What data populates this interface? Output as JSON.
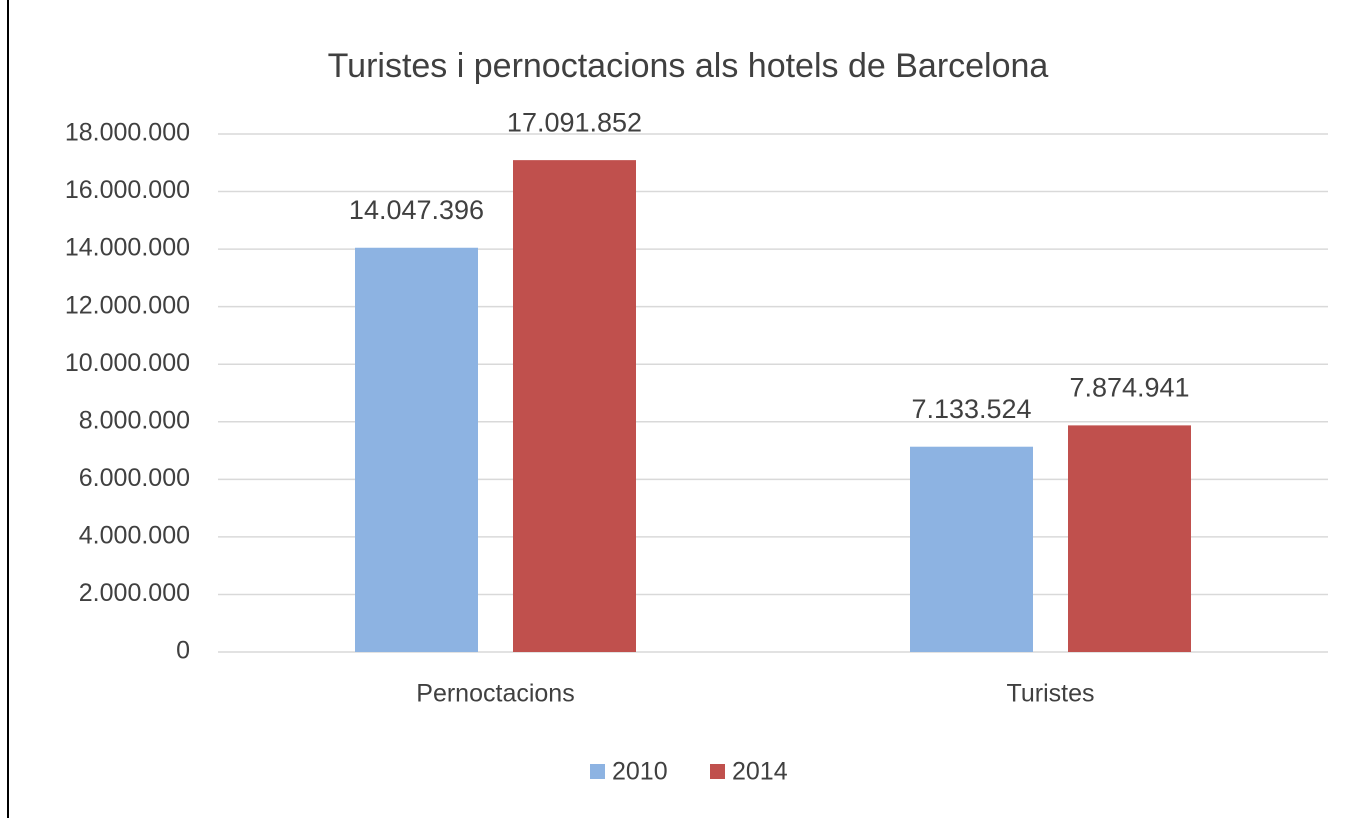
{
  "chart_data": {
    "type": "bar",
    "title": "Turistes i pernoctacions als hotels de Barcelona",
    "categories": [
      "Pernoctacions",
      "Turistes"
    ],
    "series": [
      {
        "name": "2010",
        "color": "#8db3e2",
        "values": [
          14047396,
          7133524
        ],
        "value_labels": [
          "14.047.396",
          "7.133.524"
        ]
      },
      {
        "name": "2014",
        "color": "#c0504d",
        "values": [
          17091852,
          7874941
        ],
        "value_labels": [
          "17.091.852",
          "7.874.941"
        ]
      }
    ],
    "ylim": [
      0,
      18000000
    ],
    "yticks": [
      0,
      {
        "value": 2000000,
        "label": "2.000.000"
      },
      {
        "value": 4000000,
        "label": "4.000.000"
      },
      {
        "value": 6000000,
        "label": "6.000.000"
      },
      {
        "value": 8000000,
        "label": "8.000.000"
      },
      {
        "value": 10000000,
        "label": "10.000.000"
      },
      {
        "value": 12000000,
        "label": "12.000.000"
      },
      {
        "value": 14000000,
        "label": "14.000.000"
      },
      {
        "value": 16000000,
        "label": "16.000.000"
      },
      {
        "value": 18000000,
        "label": "18.000.000"
      }
    ],
    "grid": true,
    "legend": "bottom"
  }
}
